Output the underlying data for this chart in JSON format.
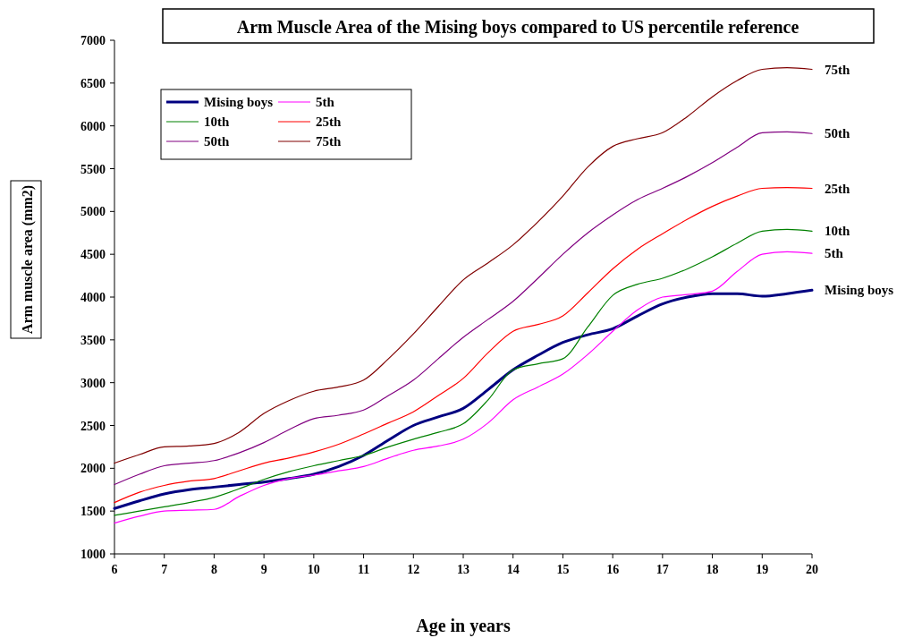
{
  "chart_data": {
    "type": "line",
    "title": "Arm Muscle Area of the Mising boys compared to US percentile reference",
    "xlabel": "Age in years",
    "ylabel": "Arm muscle area (mm2)",
    "x": [
      6,
      6.5,
      7,
      7.5,
      8,
      8.5,
      9,
      9.5,
      10,
      10.5,
      11,
      11.5,
      12,
      12.5,
      13,
      13.5,
      14,
      14.5,
      15,
      15.5,
      16,
      16.5,
      17,
      17.5,
      18,
      18.5,
      19,
      19.5,
      20
    ],
    "xlim": [
      6,
      20
    ],
    "xticks": [
      6,
      7,
      8,
      9,
      10,
      11,
      12,
      13,
      14,
      15,
      16,
      17,
      18,
      19,
      20
    ],
    "ylim": [
      1000,
      7000
    ],
    "yticks": [
      1000,
      1500,
      2000,
      2500,
      3000,
      3500,
      4000,
      4500,
      5000,
      5500,
      6000,
      6500,
      7000
    ],
    "grid": false,
    "legend": "top left",
    "marker": "none",
    "line_style": "solid",
    "series": [
      {
        "name": "Mising boys",
        "color": "#000080",
        "values": [
          1530,
          1620,
          1700,
          1750,
          1780,
          1810,
          1840,
          1880,
          1930,
          2020,
          2150,
          2330,
          2500,
          2600,
          2700,
          2920,
          3150,
          3320,
          3470,
          3560,
          3630,
          3780,
          3920,
          4000,
          4040,
          4040,
          4010,
          4040,
          4080
        ]
      },
      {
        "name": "5th",
        "color": "#ff00ff",
        "values": [
          1360,
          1440,
          1500,
          1510,
          1520,
          1670,
          1800,
          1880,
          1920,
          1970,
          2020,
          2120,
          2210,
          2260,
          2340,
          2530,
          2800,
          2950,
          3100,
          3330,
          3600,
          3850,
          4000,
          4030,
          4070,
          4300,
          4500,
          4530,
          4510
        ]
      },
      {
        "name": "10th",
        "color": "#008000",
        "values": [
          1450,
          1500,
          1550,
          1600,
          1660,
          1760,
          1870,
          1960,
          2030,
          2090,
          2150,
          2250,
          2340,
          2420,
          2520,
          2800,
          3150,
          3220,
          3280,
          3650,
          4020,
          4150,
          4220,
          4330,
          4470,
          4630,
          4770,
          4790,
          4770
        ]
      },
      {
        "name": "25th",
        "color": "#ff0000",
        "values": [
          1600,
          1720,
          1800,
          1850,
          1880,
          1970,
          2060,
          2120,
          2190,
          2280,
          2400,
          2530,
          2660,
          2850,
          3050,
          3350,
          3600,
          3680,
          3780,
          4050,
          4330,
          4560,
          4740,
          4910,
          5060,
          5180,
          5270,
          5280,
          5270
        ]
      },
      {
        "name": "50th",
        "color": "#800080",
        "values": [
          1810,
          1930,
          2030,
          2060,
          2090,
          2180,
          2300,
          2450,
          2580,
          2620,
          2680,
          2850,
          3030,
          3280,
          3530,
          3740,
          3950,
          4220,
          4500,
          4750,
          4960,
          5140,
          5270,
          5410,
          5570,
          5750,
          5920,
          5930,
          5910
        ]
      },
      {
        "name": "75th",
        "color": "#800000",
        "values": [
          2060,
          2160,
          2250,
          2260,
          2290,
          2420,
          2640,
          2790,
          2900,
          2950,
          3030,
          3280,
          3570,
          3890,
          4200,
          4400,
          4610,
          4880,
          5180,
          5520,
          5760,
          5850,
          5920,
          6110,
          6340,
          6530,
          6660,
          6680,
          6660
        ]
      }
    ]
  }
}
